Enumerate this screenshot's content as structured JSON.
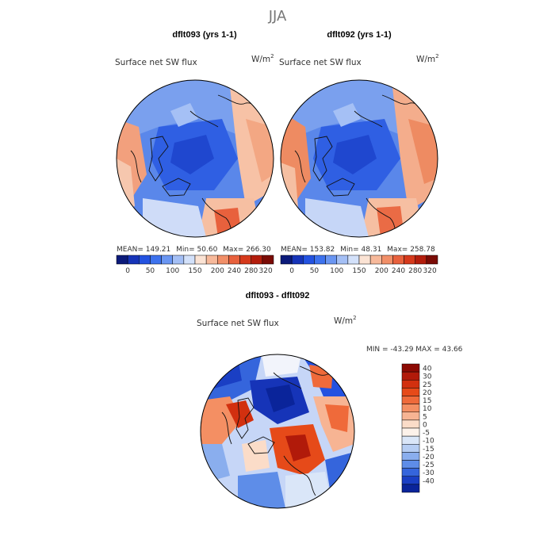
{
  "chart_data": [
    {
      "type": "heatmap",
      "title": "dflt093 (yrs 1-1)",
      "field_label": "Surface net SW flux",
      "units_base": "W/m",
      "units_exp": "2",
      "stats": {
        "mean_label": "MEAN=",
        "mean": "149.21",
        "min_label": "Min=",
        "min": "50.60",
        "max_label": "Max=",
        "max": "266.30"
      },
      "colorbar": {
        "ticks": [
          "0",
          "50",
          "100",
          "150",
          "200",
          "240",
          "280",
          "320"
        ],
        "colors": [
          "#0b1a7a",
          "#1634b8",
          "#2352e0",
          "#3d72ee",
          "#6a96f2",
          "#a4bff5",
          "#d3e1fa",
          "#fbe3d4",
          "#f7b99b",
          "#f18f68",
          "#e8613d",
          "#d63a1c",
          "#b31d0c",
          "#7a0b05"
        ]
      }
    },
    {
      "type": "heatmap",
      "title": "dflt092 (yrs 1-1)",
      "field_label": "Surface net SW flux",
      "units_base": "W/m",
      "units_exp": "2",
      "stats": {
        "mean_label": "MEAN=",
        "mean": "153.82",
        "min_label": "Min=",
        "min": "48.31",
        "max_label": "Max=",
        "max": "258.78"
      },
      "colorbar": {
        "ticks": [
          "0",
          "50",
          "100",
          "150",
          "200",
          "240",
          "280",
          "320"
        ],
        "colors": [
          "#0b1a7a",
          "#1634b8",
          "#2352e0",
          "#3d72ee",
          "#6a96f2",
          "#a4bff5",
          "#d3e1fa",
          "#fbe3d4",
          "#f7b99b",
          "#f18f68",
          "#e8613d",
          "#d63a1c",
          "#b31d0c",
          "#7a0b05"
        ]
      }
    },
    {
      "type": "heatmap",
      "title": "dflt093 - dflt092",
      "field_label": "Surface net SW flux",
      "units_base": "W/m",
      "units_exp": "2",
      "stats_text": "MIN = -43.29 MAX =  43.66",
      "colorbar": {
        "ticks": [
          "40",
          "30",
          "25",
          "20",
          "15",
          "10",
          "5",
          "0",
          "-5",
          "-10",
          "-15",
          "-20",
          "-25",
          "-30",
          "-40"
        ],
        "colors": [
          "#8c0a03",
          "#b11a0a",
          "#d2300f",
          "#e64a19",
          "#ef6a3a",
          "#f48f63",
          "#f7b493",
          "#fbdcc8",
          "#fdf2ea",
          "#dae6f8",
          "#b6cdf3",
          "#8aaeee",
          "#5e8de8",
          "#3565dc",
          "#1a3fc4",
          "#0a249a"
        ]
      }
    }
  ],
  "page": {
    "season_title": "JJA"
  }
}
